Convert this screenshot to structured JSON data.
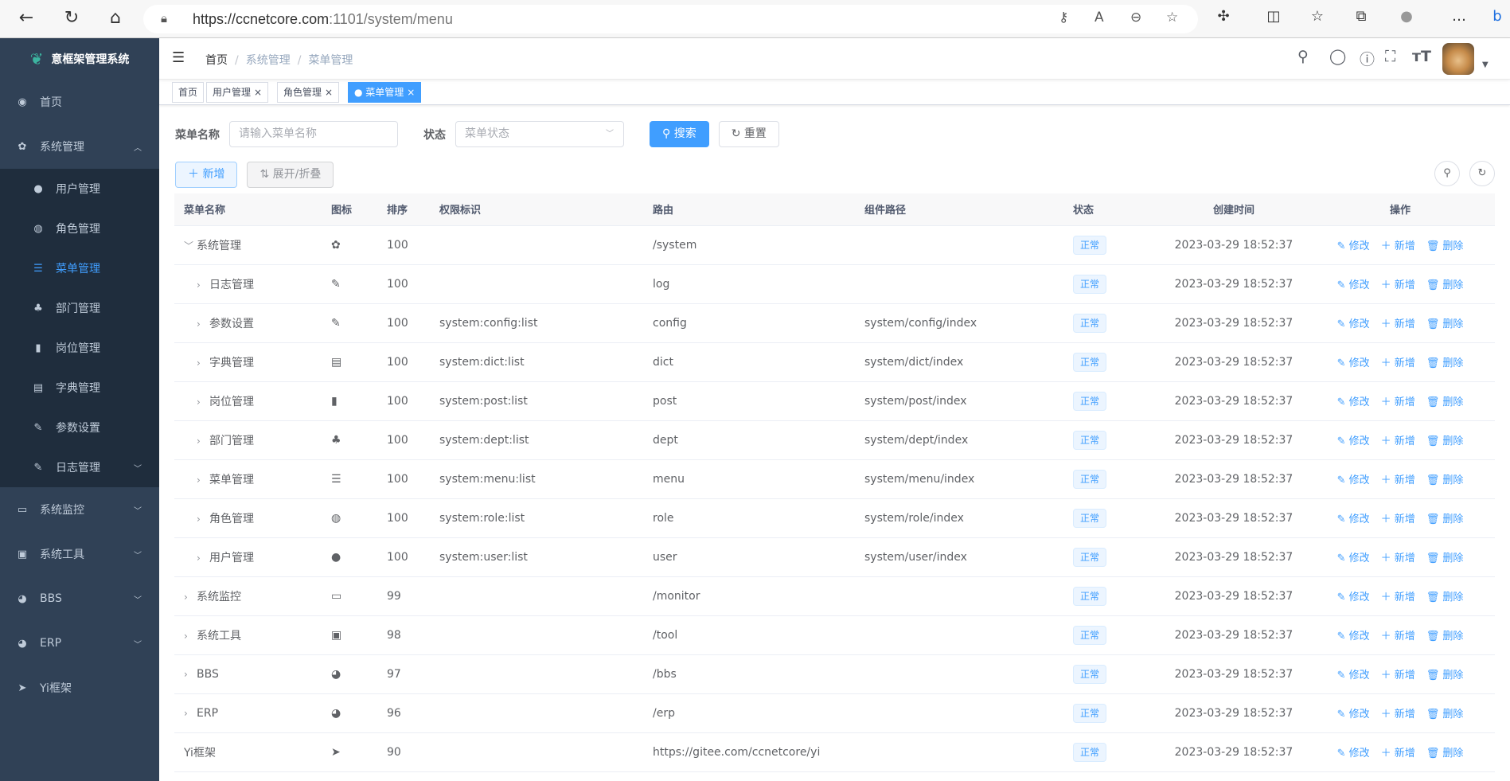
{
  "browser": {
    "url_host": "https://ccnetcore.com",
    "url_port": ":1101",
    "url_path": "/system/menu"
  },
  "sidebar": {
    "title": "意框架管理系统",
    "items": [
      {
        "label": "首页",
        "icon": "dashboard-icon",
        "glyph": "◉"
      },
      {
        "label": "系统管理",
        "icon": "gear-icon",
        "glyph": "✿",
        "arrow": "︿"
      },
      {
        "label": "用户管理",
        "icon": "user-icon",
        "glyph": "●",
        "sub": true
      },
      {
        "label": "角色管理",
        "icon": "peoples-icon",
        "glyph": "◍",
        "sub": true
      },
      {
        "label": "菜单管理",
        "icon": "tree-table-icon",
        "glyph": "☰",
        "sub": true,
        "active": true
      },
      {
        "label": "部门管理",
        "icon": "tree-icon",
        "glyph": "♣",
        "sub": true
      },
      {
        "label": "岗位管理",
        "icon": "post-icon",
        "glyph": "▮",
        "sub": true
      },
      {
        "label": "字典管理",
        "icon": "dict-icon",
        "glyph": "▤",
        "sub": true
      },
      {
        "label": "参数设置",
        "icon": "edit-icon",
        "glyph": "✎",
        "sub": true
      },
      {
        "label": "日志管理",
        "icon": "log-icon",
        "glyph": "✎",
        "sub": true,
        "arrow": "﹀"
      },
      {
        "label": "系统监控",
        "icon": "monitor-icon",
        "glyph": "▭",
        "arrow": "﹀"
      },
      {
        "label": "系统工具",
        "icon": "tool-icon",
        "glyph": "▣",
        "arrow": "﹀"
      },
      {
        "label": "BBS",
        "icon": "globe-icon",
        "glyph": "◕",
        "arrow": "﹀"
      },
      {
        "label": "ERP",
        "icon": "globe-icon",
        "glyph": "◕",
        "arrow": "﹀"
      },
      {
        "label": "Yi框架",
        "icon": "send-icon",
        "glyph": "➤"
      }
    ]
  },
  "breadcrumb": [
    "首页",
    "系统管理",
    "菜单管理"
  ],
  "tags": [
    {
      "label": "首页"
    },
    {
      "label": "用户管理",
      "close": "×"
    },
    {
      "label": "角色管理",
      "close": "×"
    },
    {
      "label": "● 菜单管理",
      "close": "×",
      "active": true
    }
  ],
  "search": {
    "name_label": "菜单名称",
    "name_placeholder": "请输入菜单名称",
    "status_label": "状态",
    "status_placeholder": "菜单状态",
    "search_btn": "搜索",
    "reset_btn": "重置"
  },
  "toolbar": {
    "add_btn": "新增",
    "expand_btn": "展开/折叠"
  },
  "table": {
    "columns": [
      "菜单名称",
      "图标",
      "排序",
      "权限标识",
      "路由",
      "组件路径",
      "状态",
      "创建时间",
      "操作"
    ],
    "actions": [
      "修改",
      "新增",
      "删除"
    ],
    "rows": [
      {
        "name": "系统管理",
        "level": 0,
        "expand": "v",
        "icon": "gear-icon",
        "glyph": "✿",
        "sort": "100",
        "perms": "",
        "route": "/system",
        "component": "",
        "status": "正常",
        "time": "2023-03-29 18:52:37"
      },
      {
        "name": "日志管理",
        "level": 1,
        "expand": ">",
        "icon": "log-icon",
        "glyph": "✎",
        "sort": "100",
        "perms": "",
        "route": "log",
        "component": "",
        "status": "正常",
        "time": "2023-03-29 18:52:37"
      },
      {
        "name": "参数设置",
        "level": 1,
        "expand": ">",
        "icon": "edit-icon",
        "glyph": "✎",
        "sort": "100",
        "perms": "system:config:list",
        "route": "config",
        "component": "system/config/index",
        "status": "正常",
        "time": "2023-03-29 18:52:37"
      },
      {
        "name": "字典管理",
        "level": 1,
        "expand": ">",
        "icon": "dict-icon",
        "glyph": "▤",
        "sort": "100",
        "perms": "system:dict:list",
        "route": "dict",
        "component": "system/dict/index",
        "status": "正常",
        "time": "2023-03-29 18:52:37"
      },
      {
        "name": "岗位管理",
        "level": 1,
        "expand": ">",
        "icon": "post-icon",
        "glyph": "▮",
        "sort": "100",
        "perms": "system:post:list",
        "route": "post",
        "component": "system/post/index",
        "status": "正常",
        "time": "2023-03-29 18:52:37"
      },
      {
        "name": "部门管理",
        "level": 1,
        "expand": ">",
        "icon": "tree-icon",
        "glyph": "♣",
        "sort": "100",
        "perms": "system:dept:list",
        "route": "dept",
        "component": "system/dept/index",
        "status": "正常",
        "time": "2023-03-29 18:52:37"
      },
      {
        "name": "菜单管理",
        "level": 1,
        "expand": ">",
        "icon": "tree-table-icon",
        "glyph": "☰",
        "sort": "100",
        "perms": "system:menu:list",
        "route": "menu",
        "component": "system/menu/index",
        "status": "正常",
        "time": "2023-03-29 18:52:37"
      },
      {
        "name": "角色管理",
        "level": 1,
        "expand": ">",
        "icon": "peoples-icon",
        "glyph": "◍",
        "sort": "100",
        "perms": "system:role:list",
        "route": "role",
        "component": "system/role/index",
        "status": "正常",
        "time": "2023-03-29 18:52:37"
      },
      {
        "name": "用户管理",
        "level": 1,
        "expand": ">",
        "icon": "user-icon",
        "glyph": "●",
        "sort": "100",
        "perms": "system:user:list",
        "route": "user",
        "component": "system/user/index",
        "status": "正常",
        "time": "2023-03-29 18:52:37"
      },
      {
        "name": "系统监控",
        "level": 0,
        "expand": ">",
        "icon": "monitor-icon",
        "glyph": "▭",
        "sort": "99",
        "perms": "",
        "route": "/monitor",
        "component": "",
        "status": "正常",
        "time": "2023-03-29 18:52:37"
      },
      {
        "name": "系统工具",
        "level": 0,
        "expand": ">",
        "icon": "tool-icon",
        "glyph": "▣",
        "sort": "98",
        "perms": "",
        "route": "/tool",
        "component": "",
        "status": "正常",
        "time": "2023-03-29 18:52:37"
      },
      {
        "name": "BBS",
        "level": 0,
        "expand": ">",
        "icon": "globe-icon",
        "glyph": "◕",
        "sort": "97",
        "perms": "",
        "route": "/bbs",
        "component": "",
        "status": "正常",
        "time": "2023-03-29 18:52:37"
      },
      {
        "name": "ERP",
        "level": 0,
        "expand": ">",
        "icon": "globe-icon",
        "glyph": "◕",
        "sort": "96",
        "perms": "",
        "route": "/erp",
        "component": "",
        "status": "正常",
        "time": "2023-03-29 18:52:37"
      },
      {
        "name": "Yi框架",
        "level": 0,
        "expand": "",
        "icon": "send-icon",
        "glyph": "➤",
        "sort": "90",
        "perms": "",
        "route": "https://gitee.com/ccnetcore/yi",
        "component": "",
        "status": "正常",
        "time": "2023-03-29 18:52:37"
      }
    ]
  },
  "colors": {
    "sidebar": "#304156",
    "submenu": "#1f2d3d",
    "primary": "#409eff"
  }
}
